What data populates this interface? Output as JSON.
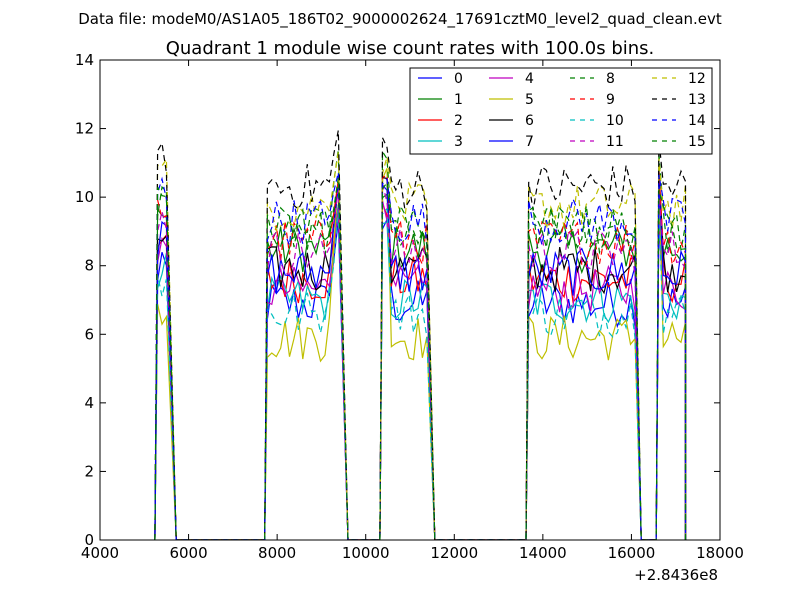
{
  "header": {
    "data_file": "Data file: modeM0/AS1A05_186T02_9000002624_17691cztM0_level2_quad_clean.evt"
  },
  "chart_data": {
    "type": "line",
    "title": "Quadrant 1 module wise count rates with 100.0s bins.",
    "xlabel": "",
    "ylabel": "",
    "x_offset_label": "+2.8436e8",
    "xlim": [
      4000,
      18000
    ],
    "ylim": [
      0,
      14
    ],
    "xticks": [
      4000,
      6000,
      8000,
      10000,
      12000,
      14000,
      16000,
      18000
    ],
    "yticks": [
      0,
      2,
      4,
      6,
      8,
      10,
      12,
      14
    ],
    "grid": false,
    "legend_position": "top-right",
    "bin_seconds": 100.0,
    "segments": [
      {
        "x_start": 5300,
        "x_end": 5500,
        "drop_end": 5720
      },
      {
        "x_start": 7780,
        "x_end": 9400,
        "drop_end": 9600
      },
      {
        "x_start": 10380,
        "x_end": 11380,
        "drop_end": 11560
      },
      {
        "x_start": 13680,
        "x_end": 16130,
        "drop_end": 16220
      },
      {
        "x_start": 16620,
        "x_end": 17220,
        "drop_end": 17220
      }
    ],
    "gaps_zero_ranges": [
      [
        5720,
        7700
      ],
      [
        9600,
        10280
      ],
      [
        11560,
        13600
      ],
      [
        16220,
        16520
      ]
    ],
    "series": [
      {
        "name": "0",
        "color": "#0000ff",
        "dash": "solid",
        "level": 6.9,
        "peak": 9.6
      },
      {
        "name": "1",
        "color": "#008000",
        "dash": "solid",
        "level": 8.5,
        "peak": 10.5
      },
      {
        "name": "2",
        "color": "#ff0000",
        "dash": "solid",
        "level": 7.6,
        "peak": 10.0
      },
      {
        "name": "3",
        "color": "#00bfbf",
        "dash": "solid",
        "level": 7.0,
        "peak": 9.8
      },
      {
        "name": "4",
        "color": "#bf00bf",
        "dash": "solid",
        "level": 7.3,
        "peak": 9.9
      },
      {
        "name": "5",
        "color": "#bfbf00",
        "dash": "solid",
        "level": 5.9,
        "peak": 11.0
      },
      {
        "name": "6",
        "color": "#000000",
        "dash": "solid",
        "level": 7.9,
        "peak": 10.8
      },
      {
        "name": "7",
        "color": "#0000ff",
        "dash": "solid",
        "level": 7.8,
        "peak": 10.7
      },
      {
        "name": "8",
        "color": "#008000",
        "dash": "dashed",
        "level": 9.0,
        "peak": 11.5
      },
      {
        "name": "9",
        "color": "#ff0000",
        "dash": "dashed",
        "level": 8.7,
        "peak": 10.8
      },
      {
        "name": "10",
        "color": "#00bfbf",
        "dash": "dashed",
        "level": 6.6,
        "peak": 9.7
      },
      {
        "name": "11",
        "color": "#bf00bf",
        "dash": "dashed",
        "level": 8.4,
        "peak": 10.4
      },
      {
        "name": "12",
        "color": "#bfbf00",
        "dash": "dashed",
        "level": 9.7,
        "peak": 11.2
      },
      {
        "name": "13",
        "color": "#000000",
        "dash": "dashed",
        "level": 10.3,
        "peak": 12.0
      },
      {
        "name": "14",
        "color": "#0000ff",
        "dash": "dashed",
        "level": 9.3,
        "peak": 10.9
      },
      {
        "name": "15",
        "color": "#008000",
        "dash": "dashed",
        "level": 9.1,
        "peak": 10.6
      }
    ]
  }
}
